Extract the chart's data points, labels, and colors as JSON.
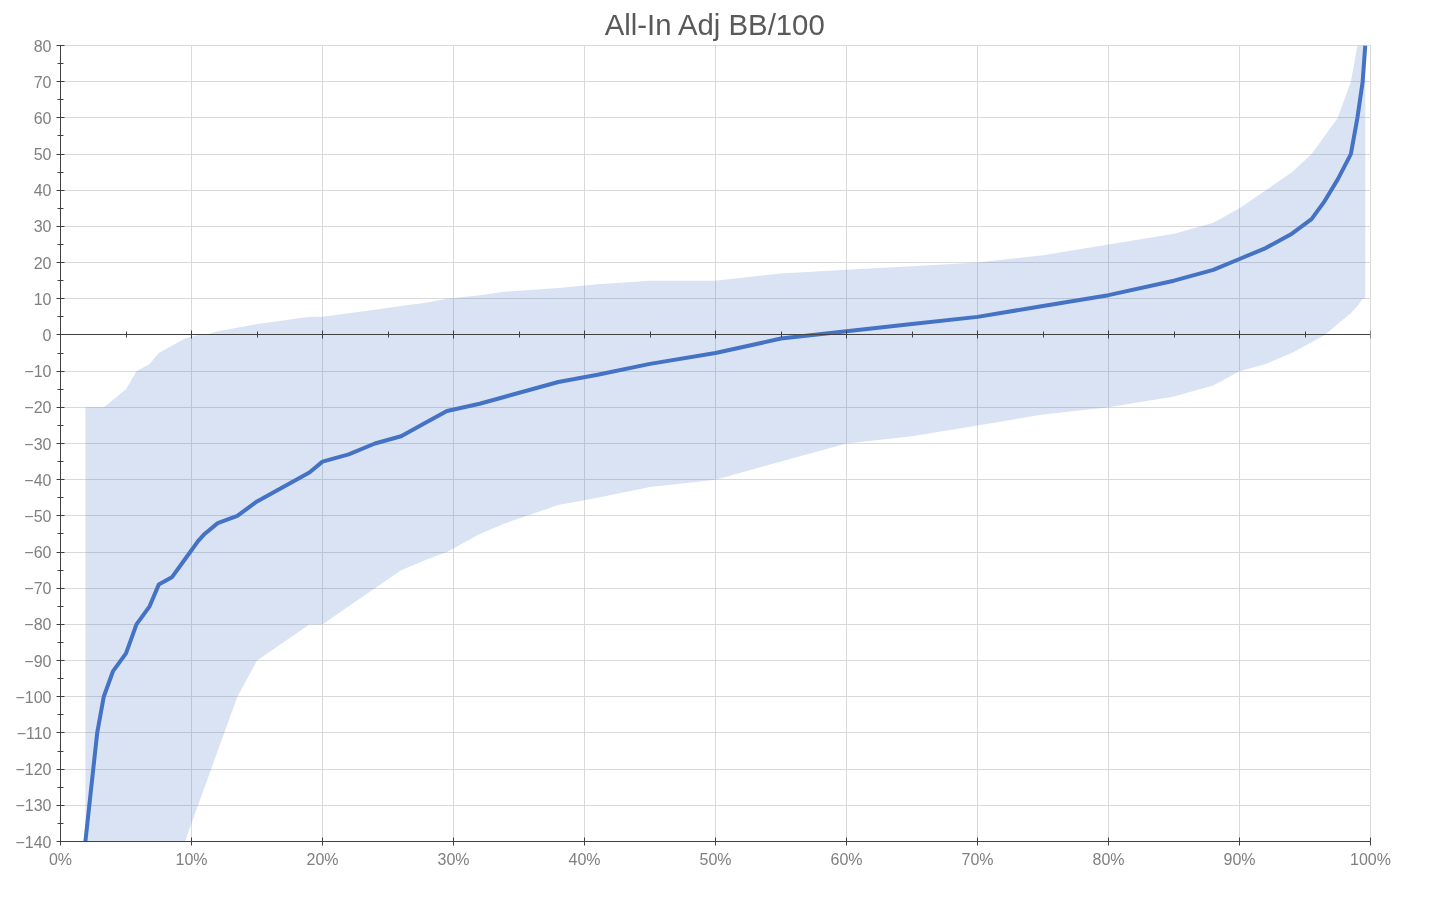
{
  "chart_data": {
    "type": "line",
    "title": "All-In Adj BB/100",
    "x": [
      1.9,
      2.2,
      2.5,
      2.8,
      3.3,
      4,
      5,
      5.8,
      6.8,
      7.5,
      8.5,
      9.5,
      10.5,
      11,
      12,
      13.5,
      15,
      17,
      19,
      20,
      22,
      24,
      26,
      28,
      29.5,
      32,
      34,
      38,
      41,
      45,
      50,
      55,
      60,
      65,
      70,
      75,
      80,
      85,
      88,
      90,
      92,
      94,
      95.5,
      96.5,
      97.5,
      98.5,
      99,
      99.4,
      99.6
    ],
    "series": [
      {
        "color": "#4472c4",
        "values": [
          -140,
          -130,
          -120,
          -110,
          -100,
          -93,
          -88,
          -80,
          -75,
          -69,
          -67,
          -62,
          -57,
          -55,
          -52,
          -50,
          -46,
          -42,
          -38,
          -35,
          -33,
          -30,
          -28,
          -24,
          -21,
          -19,
          -17,
          -13,
          -11,
          -8,
          -5,
          -1,
          1,
          3,
          5,
          8,
          11,
          15,
          18,
          21,
          24,
          28,
          32,
          37,
          43,
          50,
          60,
          70,
          80
        ],
        "lower": [
          -140,
          -140,
          -140,
          -140,
          -140,
          -140,
          -140,
          -140,
          -140,
          -140,
          -140,
          -140,
          -130,
          -125,
          -115,
          -100,
          -90,
          -85,
          -80,
          -80,
          -75,
          -70,
          -65,
          -62,
          -60,
          -55,
          -52,
          -47,
          -45,
          -42,
          -40,
          -35,
          -30,
          -28,
          -25,
          -22,
          -20,
          -17,
          -14,
          -10,
          -8,
          -5,
          -2,
          0,
          3,
          6,
          8,
          10,
          10
        ],
        "upper": [
          -20,
          -20,
          -20,
          -20,
          -20,
          -18,
          -15,
          -10,
          -8,
          -5,
          -3,
          -1,
          0,
          0,
          1,
          2,
          3,
          4,
          5,
          5,
          6,
          7,
          8,
          9,
          10,
          11,
          12,
          13,
          14,
          15,
          15,
          17,
          18,
          19,
          20,
          22,
          25,
          28,
          31,
          35,
          40,
          45,
          50,
          55,
          60,
          70,
          80,
          80,
          80
        ]
      }
    ],
    "xlim": [
      0,
      100
    ],
    "xticks": [
      {
        "value": 0,
        "label": "0%"
      },
      {
        "value": 10,
        "label": "10%"
      },
      {
        "value": 20,
        "label": "20%"
      },
      {
        "value": 30,
        "label": "30%"
      },
      {
        "value": 40,
        "label": "40%"
      },
      {
        "value": 50,
        "label": "50%"
      },
      {
        "value": 60,
        "label": "60%"
      },
      {
        "value": 70,
        "label": "70%"
      },
      {
        "value": 80,
        "label": "80%"
      },
      {
        "value": 90,
        "label": "90%"
      },
      {
        "value": 100,
        "label": "100%"
      }
    ],
    "ylim": [
      -140,
      80
    ],
    "yticks": [
      -140,
      -130,
      -120,
      -110,
      -100,
      -90,
      -80,
      -70,
      -60,
      -50,
      -40,
      -30,
      -20,
      -10,
      0,
      10,
      20,
      30,
      40,
      50,
      60,
      70,
      80
    ],
    "grid": true,
    "marker": "none",
    "line_style": "solid"
  }
}
